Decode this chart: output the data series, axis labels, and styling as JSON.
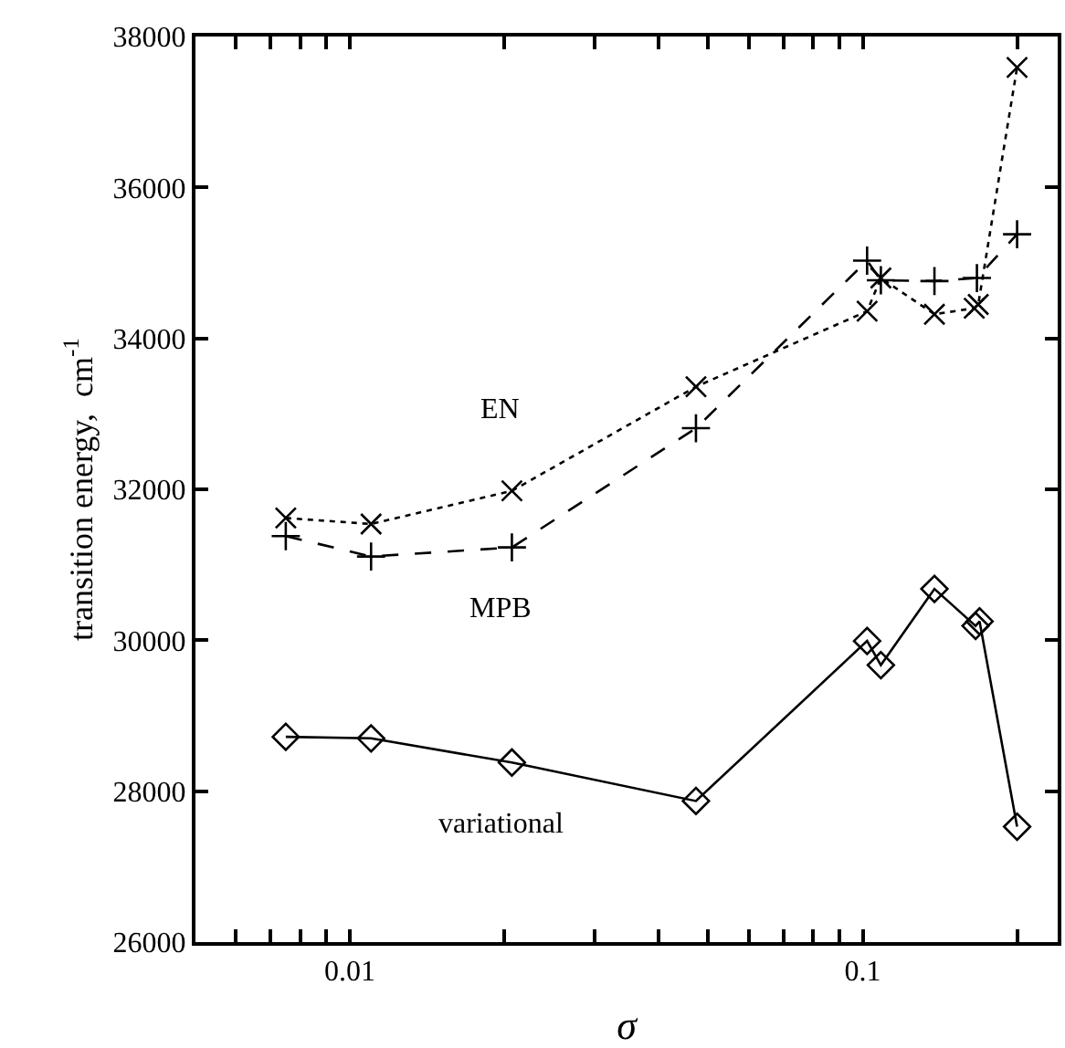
{
  "chart_data": {
    "type": "line",
    "xlabel": "σ",
    "ylabel": "transition energy,  cm$^{-1}$",
    "log": "x",
    "legend": false,
    "xlim": [
      0.005,
      0.24
    ],
    "xticks": [
      {
        "value": 0.005,
        "label": null
      },
      {
        "value": 0.006,
        "label": null
      },
      {
        "value": 0.007,
        "label": null
      },
      {
        "value": 0.008,
        "label": null
      },
      {
        "value": 0.009,
        "label": null
      },
      {
        "value": 0.01,
        "label": "0.01"
      },
      {
        "value": 0.02,
        "label": null
      },
      {
        "value": 0.03,
        "label": null
      },
      {
        "value": 0.04,
        "label": null
      },
      {
        "value": 0.05,
        "label": null
      },
      {
        "value": 0.06,
        "label": null
      },
      {
        "value": 0.07,
        "label": null
      },
      {
        "value": 0.08,
        "label": null
      },
      {
        "value": 0.09,
        "label": null
      },
      {
        "value": 0.1,
        "label": "0.1"
      },
      {
        "value": 0.2,
        "label": null
      }
    ],
    "ylim": [
      26000,
      38000
    ],
    "yticks": [
      26000,
      28000,
      30000,
      32000,
      34000,
      36000,
      38000
    ],
    "series": [
      {
        "name": "EN",
        "color": "#000000",
        "marker": "x",
        "line_style": "dotted",
        "x": [
          0.0075,
          0.011,
          0.0207,
          0.0473,
          0.102,
          0.1085,
          0.138,
          0.165,
          0.168,
          0.2
        ],
        "values": [
          31620,
          31540,
          31980,
          33360,
          34360,
          34800,
          34320,
          34400,
          34450,
          37590
        ]
      },
      {
        "name": "MPB",
        "color": "#000000",
        "marker": "cross",
        "line_style": "dashed",
        "x": [
          0.0075,
          0.011,
          0.0207,
          0.0473,
          0.102,
          0.1085,
          0.138,
          0.167,
          0.2
        ],
        "values": [
          31380,
          31110,
          31230,
          32810,
          35030,
          34770,
          34760,
          34800,
          35380
        ]
      },
      {
        "name": "variational",
        "color": "#000000",
        "marker": "diamond",
        "line_style": "solid",
        "x": [
          0.0075,
          0.011,
          0.0207,
          0.0473,
          0.102,
          0.1085,
          0.138,
          0.166,
          0.169,
          0.2
        ],
        "values": [
          28720,
          28700,
          28380,
          27870,
          29990,
          29670,
          30680,
          30190,
          30250,
          27530
        ]
      }
    ]
  }
}
